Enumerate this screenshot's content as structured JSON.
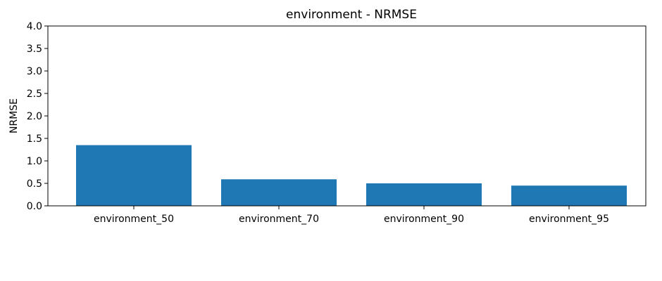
{
  "chart_data": {
    "type": "bar",
    "title": "environment - NRMSE",
    "xlabel": "",
    "ylabel": "NRMSE",
    "categories": [
      "environment_50",
      "environment_70",
      "environment_90",
      "environment_95"
    ],
    "values": [
      1.35,
      0.59,
      0.5,
      0.45
    ],
    "ylim": [
      0,
      4.0
    ],
    "yticks": [
      0.0,
      0.5,
      1.0,
      1.5,
      2.0,
      2.5,
      3.0,
      3.5,
      4.0
    ],
    "ytick_labels": [
      "0.0",
      "0.5",
      "1.0",
      "1.5",
      "2.0",
      "2.5",
      "3.0",
      "3.5",
      "4.0"
    ],
    "bar_color": "#1f77b4",
    "grid": false,
    "legend": "none"
  }
}
